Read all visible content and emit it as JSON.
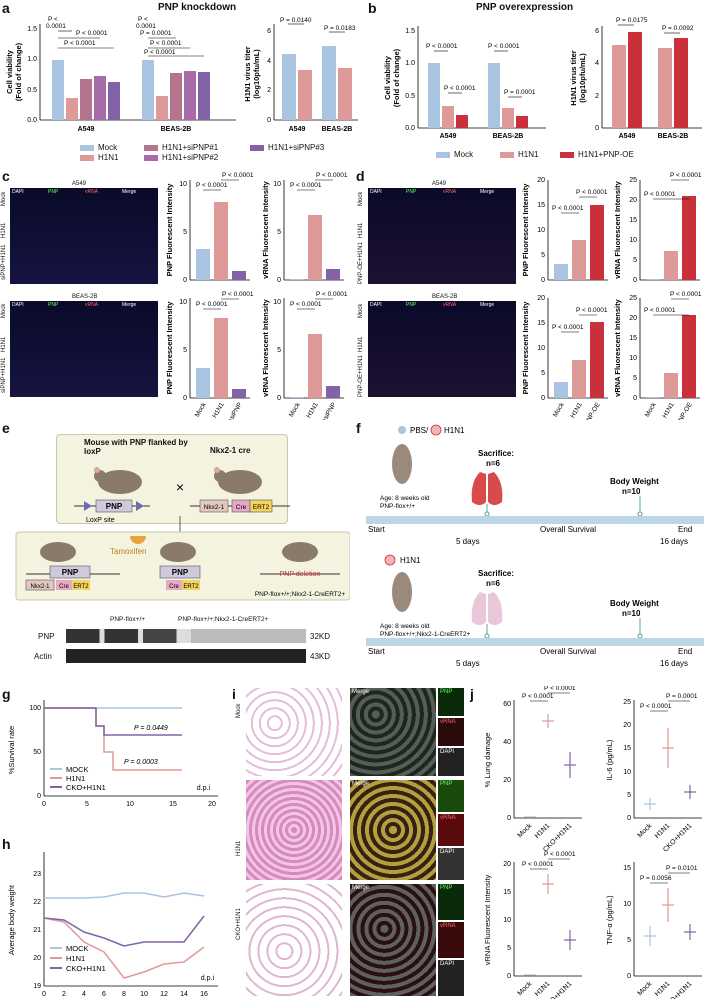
{
  "panels": {
    "a": {
      "label": "a",
      "title": "PNP knockdown",
      "viability": {
        "ylabel": "Cell viability (Fold of change)",
        "groups": [
          "A549",
          "BEAS-2B"
        ],
        "values": {
          "A549": [
            1.0,
            0.36,
            0.68,
            0.72,
            0.62
          ],
          "BEAS-2B": [
            1.0,
            0.4,
            0.78,
            0.82,
            0.8
          ]
        },
        "yticks": [
          "0.0",
          "0.5",
          "1.0",
          "1.5"
        ],
        "pvals": [
          "P <\n0.0001",
          "P < 0.0001",
          "P < 0.0001",
          "P = 0.0001",
          "P <\n0.0001",
          "P < 0.0001",
          "P < 0.0001",
          "P = 0.0001"
        ]
      },
      "titer": {
        "ylabel": "H1N1 virus titer (log10pfu/mL)",
        "groups": [
          "A549",
          "BEAS-2B"
        ],
        "values": {
          "A549": [
            4.5,
            3.4
          ],
          "BEAS-2B": [
            5.0,
            3.5
          ]
        },
        "yticks": [
          "0",
          "2",
          "4",
          "6"
        ],
        "pvals": [
          "P = 0.0140",
          "P = 0.0183"
        ]
      },
      "legend": [
        "Mock",
        "H1N1",
        "H1N1+siPNP#1",
        "H1N1+siPNP#2",
        "H1N1+siPNP#3"
      ]
    },
    "b": {
      "label": "b",
      "title": "PNP overexpression",
      "viability": {
        "ylabel": "Cell viability (Fold of change)",
        "groups": [
          "A549",
          "BEAS-2B"
        ],
        "values": {
          "A549": [
            1.0,
            0.33,
            0.2
          ],
          "BEAS-2B": [
            1.0,
            0.31,
            0.18
          ]
        },
        "yticks": [
          "0.0",
          "0.5",
          "1.0",
          "1.5"
        ],
        "pvals": [
          "P < 0.0001",
          "P < 0.0001",
          "P < 0.0001",
          "P = 0.0001"
        ]
      },
      "titer": {
        "ylabel": "H1N1 virus titer (log10pfu/mL)",
        "groups": [
          "A549",
          "BEAS-2B"
        ],
        "values": {
          "A549": [
            5.1,
            5.9
          ],
          "BEAS-2B": [
            4.9,
            5.5
          ]
        },
        "yticks": [
          "0",
          "2",
          "4",
          "6"
        ],
        "pvals": [
          "P = 0.0175",
          "P = 0.0092"
        ]
      },
      "legend": [
        "Mock",
        "H1N1",
        "H1N1+PNP-OE"
      ]
    },
    "c": {
      "label": "c",
      "cells": [
        "A549",
        "BEAS-2B"
      ],
      "rows": [
        "Mock",
        "H1N1",
        "siPNP+H1N1"
      ],
      "channels": [
        "DAPI",
        "PNP",
        "vRNA",
        "Merge"
      ],
      "pnp": {
        "ylabel": "PNP Fluorescent Intensity",
        "pvals": [
          "P < 0.0001",
          "P < 0.0001"
        ],
        "a549": [
          3.2,
          8.1,
          0.9
        ],
        "beas": [
          3.1,
          8.3,
          0.9
        ],
        "yticks": [
          "0",
          "5",
          "10"
        ]
      },
      "vrna": {
        "ylabel": "vRNA Fluorescent Intensity",
        "pvals": [
          "P < 0.0001",
          "P < 0.0001"
        ],
        "a549": [
          0.1,
          6.8,
          1.2
        ],
        "beas": [
          0.1,
          6.7,
          1.3
        ],
        "yticks": [
          "0",
          "5",
          "10"
        ]
      },
      "xcats": [
        "Mock",
        "H1N1",
        "H1N1+siPNP"
      ]
    },
    "d": {
      "label": "d",
      "cells": [
        "A549",
        "BEAS-2B"
      ],
      "rows": [
        "Mock",
        "H1N1",
        "PNP-OE+H1N1"
      ],
      "channels": [
        "DAPI",
        "PNP",
        "vRNA",
        "Merge"
      ],
      "pnp": {
        "ylabel": "PNP Fluorescent Intensity",
        "pvals": [
          "P < 0.0001",
          "P < 0.0001"
        ],
        "a549": [
          3.1,
          8.0,
          15.1
        ],
        "beas": [
          3.2,
          7.7,
          15.3
        ],
        "yticks": [
          "0",
          "5",
          "10",
          "15",
          "20"
        ]
      },
      "vrna": {
        "ylabel": "vRNA Fluorescent Intensity",
        "pvals": [
          "P < 0.0001",
          "P < 0.0001"
        ],
        "a549": [
          0.1,
          7.2,
          21.0
        ],
        "beas": [
          0.1,
          6.2,
          20.8
        ],
        "yticks": [
          "0",
          "5",
          "10",
          "15",
          "20",
          "25"
        ]
      },
      "xcats": [
        "Mock",
        "H1N1",
        "H1N1+PNP-OE"
      ]
    },
    "e": {
      "label": "e",
      "mouse1": "Mouse with PNP flanked by loxP",
      "mouse2": "Nkx2-1 cre",
      "loxp": "LoxP site",
      "pnp": "PNP",
      "nkx": "Nkx2-1",
      "cre": "Cre",
      "ert": "ERT2",
      "tamoxifen": "Tamoxifen",
      "deletion": "PNP deletion",
      "geno": "PNP-flox+/+;Nkx2-1-CreERT2+",
      "blot_g1": "PNP-flox+/+",
      "blot_g2": "PNP-flox+/+;Nkx2-1-CreERT2+",
      "blot_pnp": "PNP",
      "blot_actin": "Actin",
      "kd1": "32KD",
      "kd2": "43KD"
    },
    "f": {
      "label": "f",
      "legend_pbs": "PBS/",
      "legend_h1n1": "H1N1",
      "age": "Age: 8 weeks old",
      "geno1": "PNP-flox+/+",
      "geno2": "PNP-flox+/+;Nkx2-1-CreERT2+",
      "sacrifice": "Sacrifice:",
      "n6": "n=6",
      "bw": "Body Weight",
      "n10": "n=10",
      "start": "Start",
      "os": "Overall Survival",
      "end": "End",
      "d5": "5 days",
      "d16": "16 days",
      "h1n1": "H1N1"
    },
    "g": {
      "label": "g",
      "ylabel": "%Survival rate",
      "xlabel": "d.p.i",
      "yticks": [
        "0",
        "50",
        "100"
      ],
      "xticks": [
        "0",
        "5",
        "10",
        "15",
        "20"
      ],
      "legend": [
        "MOCK",
        "H1N1",
        "CKO+H1N1"
      ],
      "p1": "P = 0.0449",
      "p2": "P = 0.0003"
    },
    "h": {
      "label": "h",
      "ylabel": "Average body weight",
      "xlabel": "d.p.i",
      "yticks": [
        "19",
        "20",
        "21",
        "22",
        "23"
      ],
      "xticks": [
        "0",
        "2",
        "4",
        "6",
        "8",
        "10",
        "12",
        "14",
        "16"
      ],
      "legend": [
        "MOCK",
        "H1N1",
        "CKO+H1N1"
      ]
    },
    "i": {
      "label": "i",
      "rows": [
        "Mock",
        "H1N1",
        "CKO+H1N1"
      ],
      "merge": "Merge",
      "pnp": "PNP",
      "vrna": "vRNA",
      "dapi": "DAPI"
    },
    "j": {
      "label": "j",
      "lung": {
        "ylabel": "% Lung damage",
        "yticks": [
          "0",
          "20",
          "40",
          "60"
        ],
        "pvals": [
          "P < 0.0001",
          "P < 0.0001"
        ],
        "values": [
          0.5,
          51,
          28
        ]
      },
      "il6": {
        "ylabel": "IL-6 (pg/mL)",
        "yticks": [
          "0",
          "5",
          "10",
          "15",
          "20",
          "25"
        ],
        "pvals": [
          "P < 0.0001",
          "P = 0.0001"
        ],
        "values": [
          3,
          15,
          5.5
        ]
      },
      "vrna": {
        "ylabel": "vRNA Fluorescent Intensity",
        "yticks": [
          "0",
          "5",
          "10",
          "15",
          "20"
        ],
        "pvals": [
          "P < 0.0001",
          "P < 0.0001"
        ],
        "values": [
          0.1,
          16.5,
          6.5
        ]
      },
      "tnf": {
        "ylabel": "TNF-α (pg/mL)",
        "yticks": [
          "0",
          "5",
          "10",
          "15"
        ],
        "pvals": [
          "P = 0.0101",
          "P = 0.0056"
        ],
        "values": [
          5.5,
          9.8,
          6
        ]
      },
      "xcats": [
        "Mock",
        "H1N1",
        "CKO+H1N1"
      ]
    }
  },
  "colors": {
    "mock": "#a9c4e0",
    "h1n1": "#de9a98",
    "si1": "#b5748e",
    "si2": "#a86ba9",
    "si3": "#8363a5",
    "oe": "#c9303a"
  }
}
